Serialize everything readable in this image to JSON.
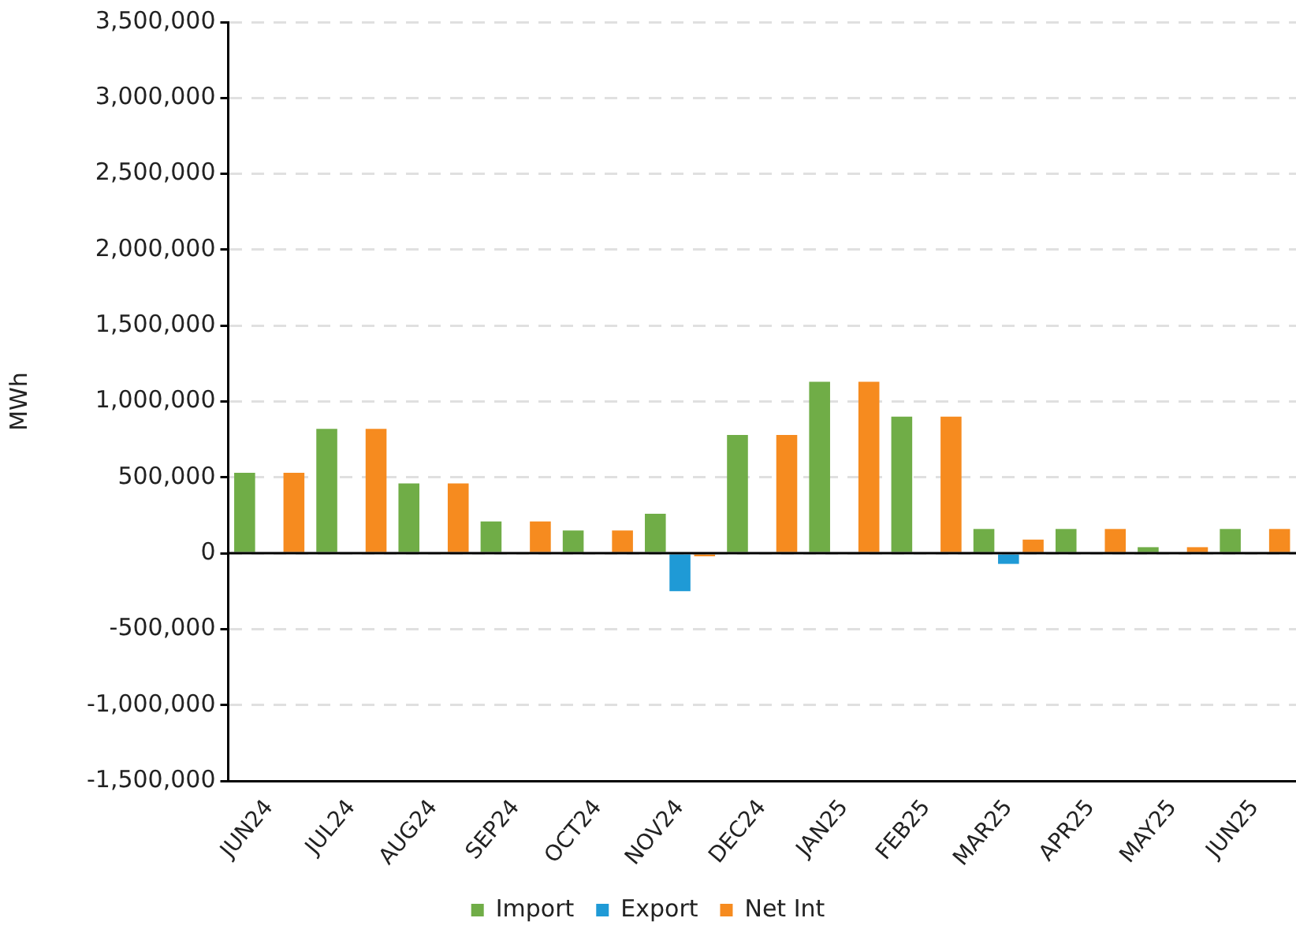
{
  "chart_data": {
    "type": "bar",
    "ylabel": "MWh",
    "categories": [
      "JUN24",
      "JUL24",
      "AUG24",
      "SEP24",
      "OCT24",
      "NOV24",
      "DEC24",
      "JAN25",
      "FEB25",
      "MAR25",
      "APR25",
      "MAY25",
      "JUN25"
    ],
    "series": [
      {
        "name": "Import",
        "color": "#70ad47",
        "values": [
          530000,
          820000,
          460000,
          210000,
          150000,
          260000,
          780000,
          1130000,
          900000,
          160000,
          160000,
          40000,
          160000
        ]
      },
      {
        "name": "Export",
        "color": "#1f9ad6",
        "values": [
          0,
          0,
          0,
          0,
          0,
          -250000,
          0,
          0,
          0,
          -70000,
          0,
          0,
          0
        ]
      },
      {
        "name": "Net Int",
        "color": "#f68b1f",
        "values": [
          530000,
          820000,
          460000,
          210000,
          150000,
          -20000,
          780000,
          1130000,
          900000,
          90000,
          160000,
          40000,
          160000
        ]
      }
    ],
    "ylim": [
      -1500000,
      3500000
    ],
    "yticks": [
      {
        "value": -1500000,
        "label": "-1,500,000"
      },
      {
        "value": -1000000,
        "label": "-1,000,000"
      },
      {
        "value": -500000,
        "label": "-500,000"
      },
      {
        "value": 0,
        "label": "0"
      },
      {
        "value": 500000,
        "label": "500,000"
      },
      {
        "value": 1000000,
        "label": "1,000,000"
      },
      {
        "value": 1500000,
        "label": "1,500,000"
      },
      {
        "value": 2000000,
        "label": "2,000,000"
      },
      {
        "value": 2500000,
        "label": "2,500,000"
      },
      {
        "value": 3000000,
        "label": "3,000,000"
      },
      {
        "value": 3500000,
        "label": "3,500,000"
      }
    ],
    "grid": "y",
    "legend": "bottom"
  }
}
